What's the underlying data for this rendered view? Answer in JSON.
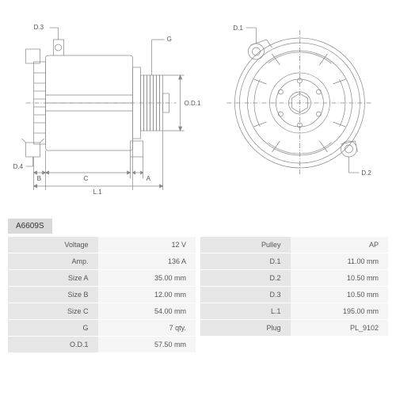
{
  "part_number": "A6609S",
  "diagram_left": {
    "labels": {
      "d3": "D.3",
      "d4": "D.4",
      "g": "G",
      "od1": "O.D.1",
      "b": "B",
      "c": "C",
      "a": "A",
      "l1": "L.1"
    },
    "stroke_color": "#878787",
    "stroke_width": 0.7
  },
  "diagram_right": {
    "labels": {
      "d1": "D.1",
      "d2": "D.2"
    },
    "stroke_color": "#878787",
    "stroke_width": 0.7
  },
  "specs_left": [
    {
      "label": "Voltage",
      "value": "12 V"
    },
    {
      "label": "Amp.",
      "value": "136 A"
    },
    {
      "label": "Size A",
      "value": "35.00 mm"
    },
    {
      "label": "Size B",
      "value": "12.00 mm"
    },
    {
      "label": "Size C",
      "value": "54.00 mm"
    },
    {
      "label": "G",
      "value": "7 qty."
    },
    {
      "label": "O.D.1",
      "value": "57.50 mm"
    }
  ],
  "specs_right": [
    {
      "label": "Pulley",
      "value": "AP"
    },
    {
      "label": "D.1",
      "value": "11.00 mm"
    },
    {
      "label": "D.2",
      "value": "10.50 mm"
    },
    {
      "label": "D.3",
      "value": "10.50 mm"
    },
    {
      "label": "L.1",
      "value": "195.00 mm"
    },
    {
      "label": "Plug",
      "value": "PL_9102"
    }
  ],
  "styling": {
    "bg_color": "#ffffff",
    "label_bg": "#e6e6e6",
    "value_bg": "#f5f5f5",
    "partnum_bg": "#d9d9d9",
    "text_color": "#555555",
    "font_size_table": 9,
    "font_size_diagram_labels": 8
  }
}
